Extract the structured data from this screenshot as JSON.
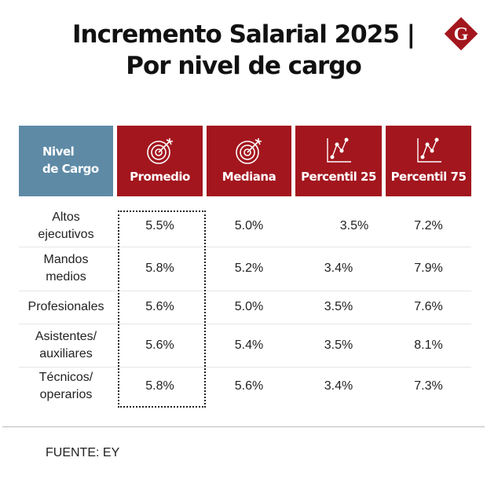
{
  "title_line1": "Incremento Salarial 2025 |",
  "title_line2": "Por nivel de cargo",
  "logo": {
    "letter": "G",
    "color": "#a3161e"
  },
  "colors": {
    "header_red": "#a3161e",
    "header_blue": "#5e8aa6"
  },
  "chart_data": {
    "type": "table",
    "columns": [
      {
        "label": "Nivel\nde Cargo",
        "icon": ""
      },
      {
        "label": "Promedio",
        "icon": "target-icon"
      },
      {
        "label": "Mediana",
        "icon": "target-icon"
      },
      {
        "label": "Percentil 25",
        "icon": "line-chart-icon"
      },
      {
        "label": "Percentil 75",
        "icon": "line-chart-icon"
      }
    ],
    "rows": [
      [
        "Altos\nejecutivos",
        "5.5%",
        "5.0%",
        "3.5%",
        "7.2%"
      ],
      [
        "Mandos\nmedios",
        "5.8%",
        "5.2%",
        "3.4%",
        "7.9%"
      ],
      [
        "Profesionales",
        "5.6%",
        "5.0%",
        "3.5%",
        "7.6%"
      ],
      [
        "Asistentes/\nauxiliares",
        "5.6%",
        "5.4%",
        "3.5%",
        "8.1%"
      ],
      [
        "Técnicos/\noperarios",
        "5.8%",
        "5.6%",
        "3.4%",
        "7.3%"
      ]
    ],
    "highlighted_column": "Promedio"
  },
  "source": "FUENTE: EY"
}
